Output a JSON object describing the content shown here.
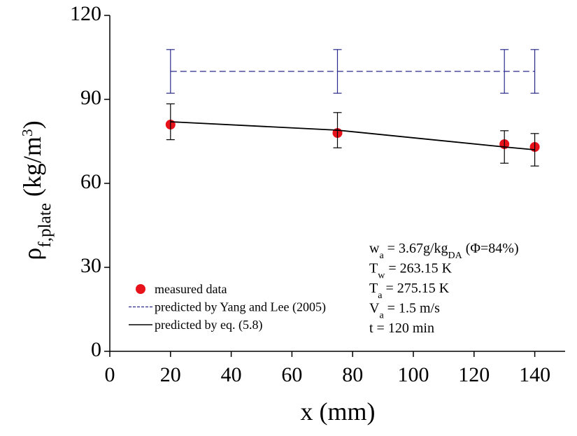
{
  "chart_data": {
    "type": "line",
    "x_label": "x (mm)",
    "y_label": [
      {
        "text": "ρ"
      },
      {
        "text": "f,plate",
        "shift": "sub"
      },
      {
        "text": " (kg/m"
      },
      {
        "text": "3",
        "shift": "super"
      },
      {
        "text": ")"
      }
    ],
    "xlim": [
      0,
      150
    ],
    "xticks": [
      0,
      20,
      40,
      60,
      80,
      100,
      120,
      140
    ],
    "ylim": [
      0,
      120
    ],
    "yticks": [
      0,
      30,
      60,
      90,
      120
    ],
    "series": [
      {
        "name": "measured data",
        "type": "scatter",
        "color": "#e8121a",
        "x": [
          20,
          75,
          130,
          140
        ],
        "values": [
          81,
          78,
          74,
          73
        ]
      },
      {
        "name": "predicted by Yang and Lee (2005)",
        "type": "line",
        "dash": true,
        "color": "#2b2b8c",
        "x": [
          20,
          75,
          130,
          140
        ],
        "values": [
          100,
          100,
          100,
          100
        ],
        "errors": [
          7.8,
          7.8,
          7.8,
          7.8
        ]
      },
      {
        "name": "predicted by eq. (5.8)",
        "type": "line",
        "dash": false,
        "color": "#000000",
        "x": [
          20,
          75,
          130,
          140
        ],
        "values": [
          82,
          79,
          73,
          72
        ],
        "errors": [
          6.4,
          6.3,
          5.8,
          5.8
        ]
      }
    ],
    "annotations": [
      [
        {
          "text": "w"
        },
        {
          "text": "a",
          "shift": "sub"
        },
        {
          "text": " = 3.67g/kg"
        },
        {
          "text": "DA",
          "shift": "sub"
        },
        {
          "text": " (Φ=84%)"
        }
      ],
      [
        {
          "text": "T"
        },
        {
          "text": "w",
          "shift": "sub"
        },
        {
          "text": " = 263.15 K"
        }
      ],
      [
        {
          "text": "T"
        },
        {
          "text": "a",
          "shift": "sub"
        },
        {
          "text": " = 275.15 K"
        }
      ],
      [
        {
          "text": "V"
        },
        {
          "text": "a",
          "shift": "sub"
        },
        {
          "text": " = 1.5 m/s"
        }
      ],
      [
        {
          "text": "t = 120 min"
        }
      ]
    ]
  }
}
